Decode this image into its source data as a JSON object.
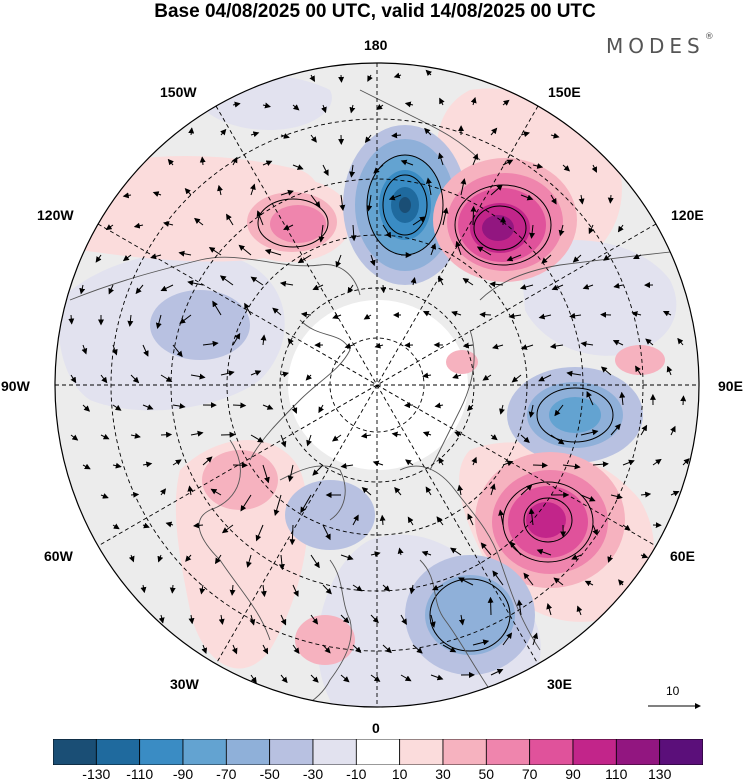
{
  "title": "Base 04/08/2025 00 UTC, valid 14/08/2025 00 UTC",
  "brand": {
    "name": "MODES",
    "mark": "®"
  },
  "map": {
    "projection": "north polar stereographic",
    "longitude_labels": {
      "lon_180": "180",
      "lon_150e": "150E",
      "lon_120e": "120E",
      "lon_90e": "90E",
      "lon_60e": "60E",
      "lon_30e": "30E",
      "lon_0": "0",
      "lon_30w": "30W",
      "lon_60w": "60W",
      "lon_90w": "90W",
      "lon_120w": "120W",
      "lon_150w": "150W"
    },
    "vector_reference": {
      "label": "10",
      "value": 10
    }
  },
  "colorbar": {
    "colors": [
      "#1a4e75",
      "#1f6a9e",
      "#3a8cc4",
      "#63a3d1",
      "#8fb0d9",
      "#b8c1e1",
      "#e2e2ef",
      "#ffffff",
      "#fbdcdc",
      "#f6b2bf",
      "#ef85ad",
      "#e0529b",
      "#c2258a",
      "#921680",
      "#5b0f7a"
    ],
    "tick_labels": [
      "-130",
      "-110",
      "-90",
      "-70",
      "-50",
      "-30",
      "-10",
      "10",
      "30",
      "50",
      "70",
      "90",
      "110",
      "130"
    ]
  },
  "anomalies": [
    {
      "name": "positive-north-pacific-west",
      "sign": "positive",
      "peak": 70
    },
    {
      "name": "negative-bering-sea",
      "sign": "negative",
      "peak": -130
    },
    {
      "name": "positive-east-siberia",
      "sign": "positive",
      "peak": 110
    },
    {
      "name": "negative-central-siberia",
      "sign": "negative",
      "peak": -70
    },
    {
      "name": "positive-west-siberia",
      "sign": "positive",
      "peak": 90
    },
    {
      "name": "negative-eastern-europe",
      "sign": "negative",
      "peak": -50
    },
    {
      "name": "negative-canada",
      "sign": "negative",
      "peak": -30
    },
    {
      "name": "positive-greenland-atlantic",
      "sign": "positive",
      "peak": 50
    }
  ]
}
